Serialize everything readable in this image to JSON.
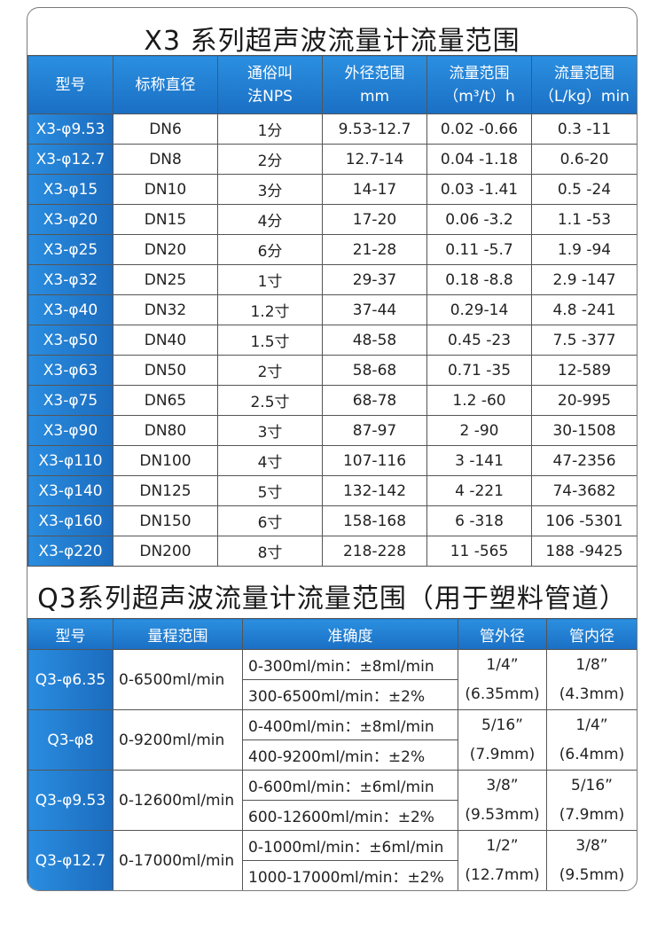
{
  "title1": "X3 系列超声波流量计流量范围",
  "table1": {
    "headers": [
      "型号",
      "标称直径",
      "通俗叫\n法NPS",
      "外径范围\nmm",
      "流量范围\n（m³/t）h",
      "流量范围\n（L/kg）min"
    ],
    "rows": [
      [
        "X3-φ9.53",
        "DN6",
        "1分",
        "9.53-12.7",
        "0.02 -0.66",
        "0.3 -11"
      ],
      [
        "X3-φ12.7",
        "DN8",
        "2分",
        "12.7-14",
        "0.04 -1.18",
        "0.6-20"
      ],
      [
        "X3-φ15",
        "DN10",
        "3分",
        "14-17",
        "0.03 -1.41",
        "0.5 -24"
      ],
      [
        "X3-φ20",
        "DN15",
        "4分",
        "17-20",
        "0.06 -3.2",
        "1.1 -53"
      ],
      [
        "X3-φ25",
        "DN20",
        "6分",
        "21-28",
        "0.11 -5.7",
        "1.9 -94"
      ],
      [
        "X3-φ32",
        "DN25",
        "1寸",
        "29-37",
        "0.18 -8.8",
        "2.9 -147"
      ],
      [
        "X3-φ40",
        "DN32",
        "1.2寸",
        "37-44",
        "0.29-14",
        "4.8 -241"
      ],
      [
        "X3-φ50",
        "DN40",
        "1.5寸",
        "48-58",
        "0.45 -23",
        "7.5 -377"
      ],
      [
        "X3-φ63",
        "DN50",
        "2寸",
        "58-68",
        "0.71 -35",
        "12-589"
      ],
      [
        "X3-φ75",
        "DN65",
        "2.5寸",
        "68-78",
        "1.2 -60",
        "20-995"
      ],
      [
        "X3-φ90",
        "DN80",
        "3寸",
        "87-97",
        "2 -90",
        "30-1508"
      ],
      [
        "X3-φ110",
        "DN100",
        "4寸",
        "107-116",
        "3 -141",
        "47-2356"
      ],
      [
        "X3-φ140",
        "DN125",
        "5寸",
        "132-142",
        "4 -221",
        "74-3682"
      ],
      [
        "X3-φ160",
        "DN150",
        "6寸",
        "158-168",
        "6 -318",
        "106 -5301"
      ],
      [
        "X3-φ220",
        "DN200",
        "8寸",
        "218-228",
        "11 -565",
        "188 -9425"
      ]
    ]
  },
  "title2": "Q3系列超声波流量计流量范围（用于塑料管道）",
  "table2": {
    "headers": [
      "型号",
      "量程范围",
      "准确度",
      "管外径",
      "管内径"
    ],
    "rows": [
      {
        "model": "Q3-φ6.35",
        "range": "0-6500ml/min",
        "acc": [
          "0-300ml/min：±8ml/min",
          "300-6500ml/min：±2%"
        ],
        "od": [
          "1/4”",
          "(6.35mm)"
        ],
        "id": [
          "1/8”",
          "(4.3mm)"
        ]
      },
      {
        "model": "Q3-φ8",
        "range": "0-9200ml/min",
        "acc": [
          "0-400ml/min：±8ml/min",
          "400-9200ml/min：±2%"
        ],
        "od": [
          "5/16”",
          "(7.9mm)"
        ],
        "id": [
          "1/4”",
          "(6.4mm)"
        ]
      },
      {
        "model": "Q3-φ9.53",
        "range": "0-12600ml/min",
        "acc": [
          "0-600ml/min：±6ml/min",
          "600-12600ml/min：±2%"
        ],
        "od": [
          "3/8”",
          "(9.53mm)"
        ],
        "id": [
          "5/16”",
          "(7.9mm)"
        ]
      },
      {
        "model": "Q3-φ12.7",
        "range": "0-17000ml/min",
        "acc": [
          "0-1000ml/min：±6ml/min",
          "1000-17000ml/min：±2%"
        ],
        "od": [
          "1/2”",
          "(12.7mm)"
        ],
        "id": [
          "3/8”",
          "(9.5mm)"
        ]
      }
    ]
  },
  "colors": {
    "header_blue": "#1f7fd6",
    "model_blue": "#1b6bbd",
    "border": "#555555"
  }
}
